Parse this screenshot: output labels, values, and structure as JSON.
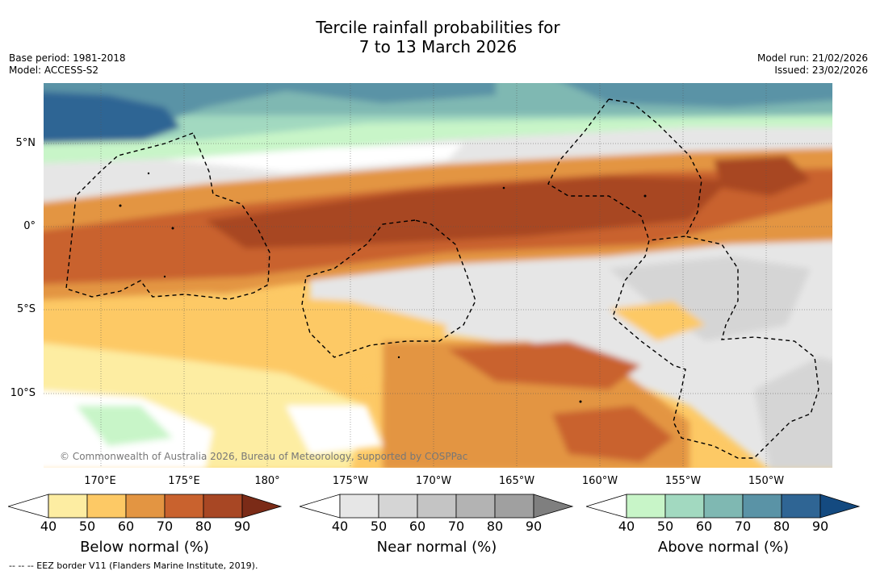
{
  "title": {
    "line1": "Tercile rainfall probabilities for",
    "line2": "7 to 13 March 2026"
  },
  "meta_left": {
    "base_period": "Base period: 1981-2018",
    "model": "Model: ACCESS-S2"
  },
  "meta_right": {
    "model_run": "Model run: 21/02/2026",
    "issued": "Issued: 23/02/2026"
  },
  "lat_labels": [
    "5°N",
    "0°",
    "5°S",
    "10°S"
  ],
  "lon_labels": [
    "170°E",
    "175°E",
    "180°",
    "175°W",
    "170°W",
    "165°W",
    "160°W",
    "155°W",
    "150°W"
  ],
  "copyright": "© Commonwealth of Australia 2026, Bureau of Meteorology, supported by COSPPac",
  "colorbars": [
    {
      "label": "Below normal (%)",
      "ticks": [
        "40",
        "50",
        "60",
        "70",
        "80",
        "90"
      ],
      "colors": [
        "#fdeda2",
        "#fdc965",
        "#e39542",
        "#c9622e",
        "#a84724",
        "#7b2b17"
      ]
    },
    {
      "label": "Near normal (%)",
      "ticks": [
        "40",
        "50",
        "60",
        "70",
        "80",
        "90"
      ],
      "colors": [
        "#e6e6e6",
        "#d5d5d5",
        "#c4c4c4",
        "#b3b3b3",
        "#a0a0a0",
        "#7f7f7f"
      ]
    },
    {
      "label": "Above normal (%)",
      "ticks": [
        "40",
        "50",
        "60",
        "70",
        "80",
        "90"
      ],
      "colors": [
        "#c8f5c8",
        "#a2d9c0",
        "#7fb8b2",
        "#5a93a6",
        "#2f6594",
        "#144a80"
      ]
    }
  ],
  "footnote": "--  --  -- EEZ border V11 (Flanders Marine Institute, 2019)."
}
